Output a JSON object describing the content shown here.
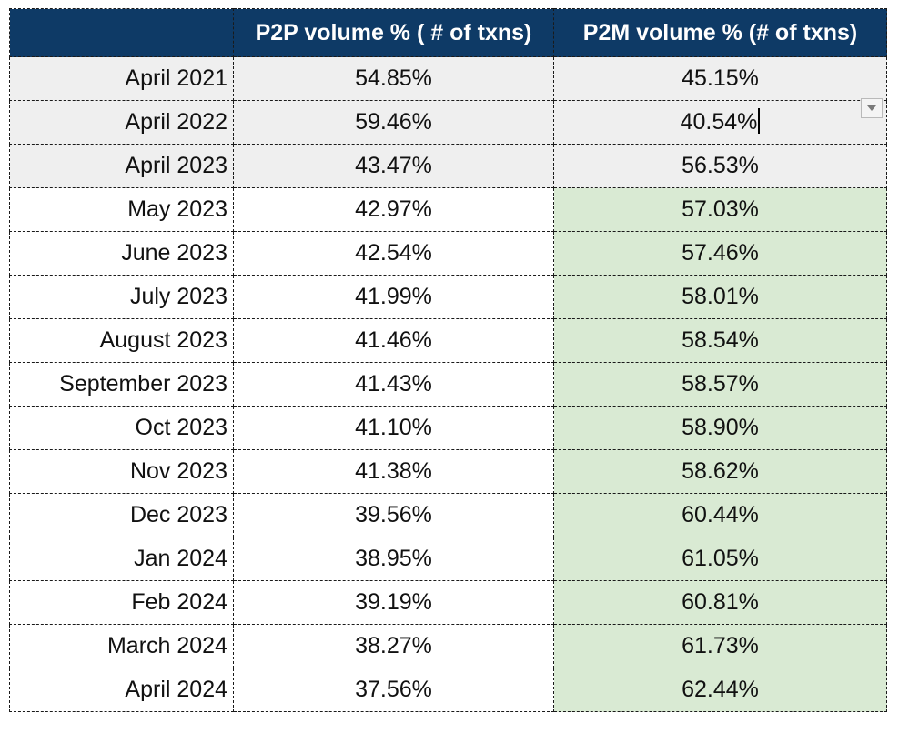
{
  "table": {
    "headers": [
      "",
      "P2P volume % ( # of txns)",
      "P2M volume % (# of txns)"
    ],
    "rows": [
      {
        "period": "April 2021",
        "p2p": "54.85%",
        "p2m": "45.15%"
      },
      {
        "period": "April 2022",
        "p2p": "59.46%",
        "p2m": "40.54%"
      },
      {
        "period": "April 2023",
        "p2p": "43.47%",
        "p2m": "56.53%"
      },
      {
        "period": "May 2023",
        "p2p": "42.97%",
        "p2m": "57.03%"
      },
      {
        "period": "June 2023",
        "p2p": "42.54%",
        "p2m": "57.46%"
      },
      {
        "period": "July 2023",
        "p2p": "41.99%",
        "p2m": "58.01%"
      },
      {
        "period": "August 2023",
        "p2p": "41.46%",
        "p2m": "58.54%"
      },
      {
        "period": "September 2023",
        "p2p": "41.43%",
        "p2m": "58.57%"
      },
      {
        "period": "Oct 2023",
        "p2p": "41.10%",
        "p2m": "58.90%"
      },
      {
        "period": "Nov 2023",
        "p2p": "41.38%",
        "p2m": "58.62%"
      },
      {
        "period": "Dec 2023",
        "p2p": "39.56%",
        "p2m": "60.44%"
      },
      {
        "period": "Jan 2024",
        "p2p": "38.95%",
        "p2m": "61.05%"
      },
      {
        "period": "Feb 2024",
        "p2p": "39.19%",
        "p2m": "60.81%"
      },
      {
        "period": "March 2024",
        "p2p": "38.27%",
        "p2m": "61.73%"
      },
      {
        "period": "April 2024",
        "p2p": "37.56%",
        "p2m": "62.44%"
      }
    ]
  },
  "colors": {
    "header_bg": "#0e3a66",
    "header_text": "#ffffff",
    "history_row_bg": "#efefef",
    "highlight_bg": "#d9ead3"
  },
  "icons": {
    "dropdown": "chevron-down-icon"
  }
}
